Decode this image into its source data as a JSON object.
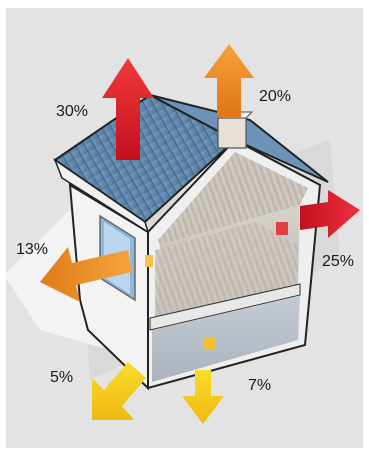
{
  "heat_loss": {
    "roof": "30%",
    "chimney": "20%",
    "right_wall": "25%",
    "window_wall": "13%",
    "corner": "5%",
    "floor": "7%"
  },
  "colors": {
    "background_panel": "#e3e3e3",
    "roof": "#5b84a9",
    "wall_white": "#f5f5f5",
    "interior_grey": "#c7c3bd",
    "arrow_red": "#e01a2a",
    "arrow_orange": "#f08a1c",
    "arrow_yellow": "#f3d10f"
  }
}
